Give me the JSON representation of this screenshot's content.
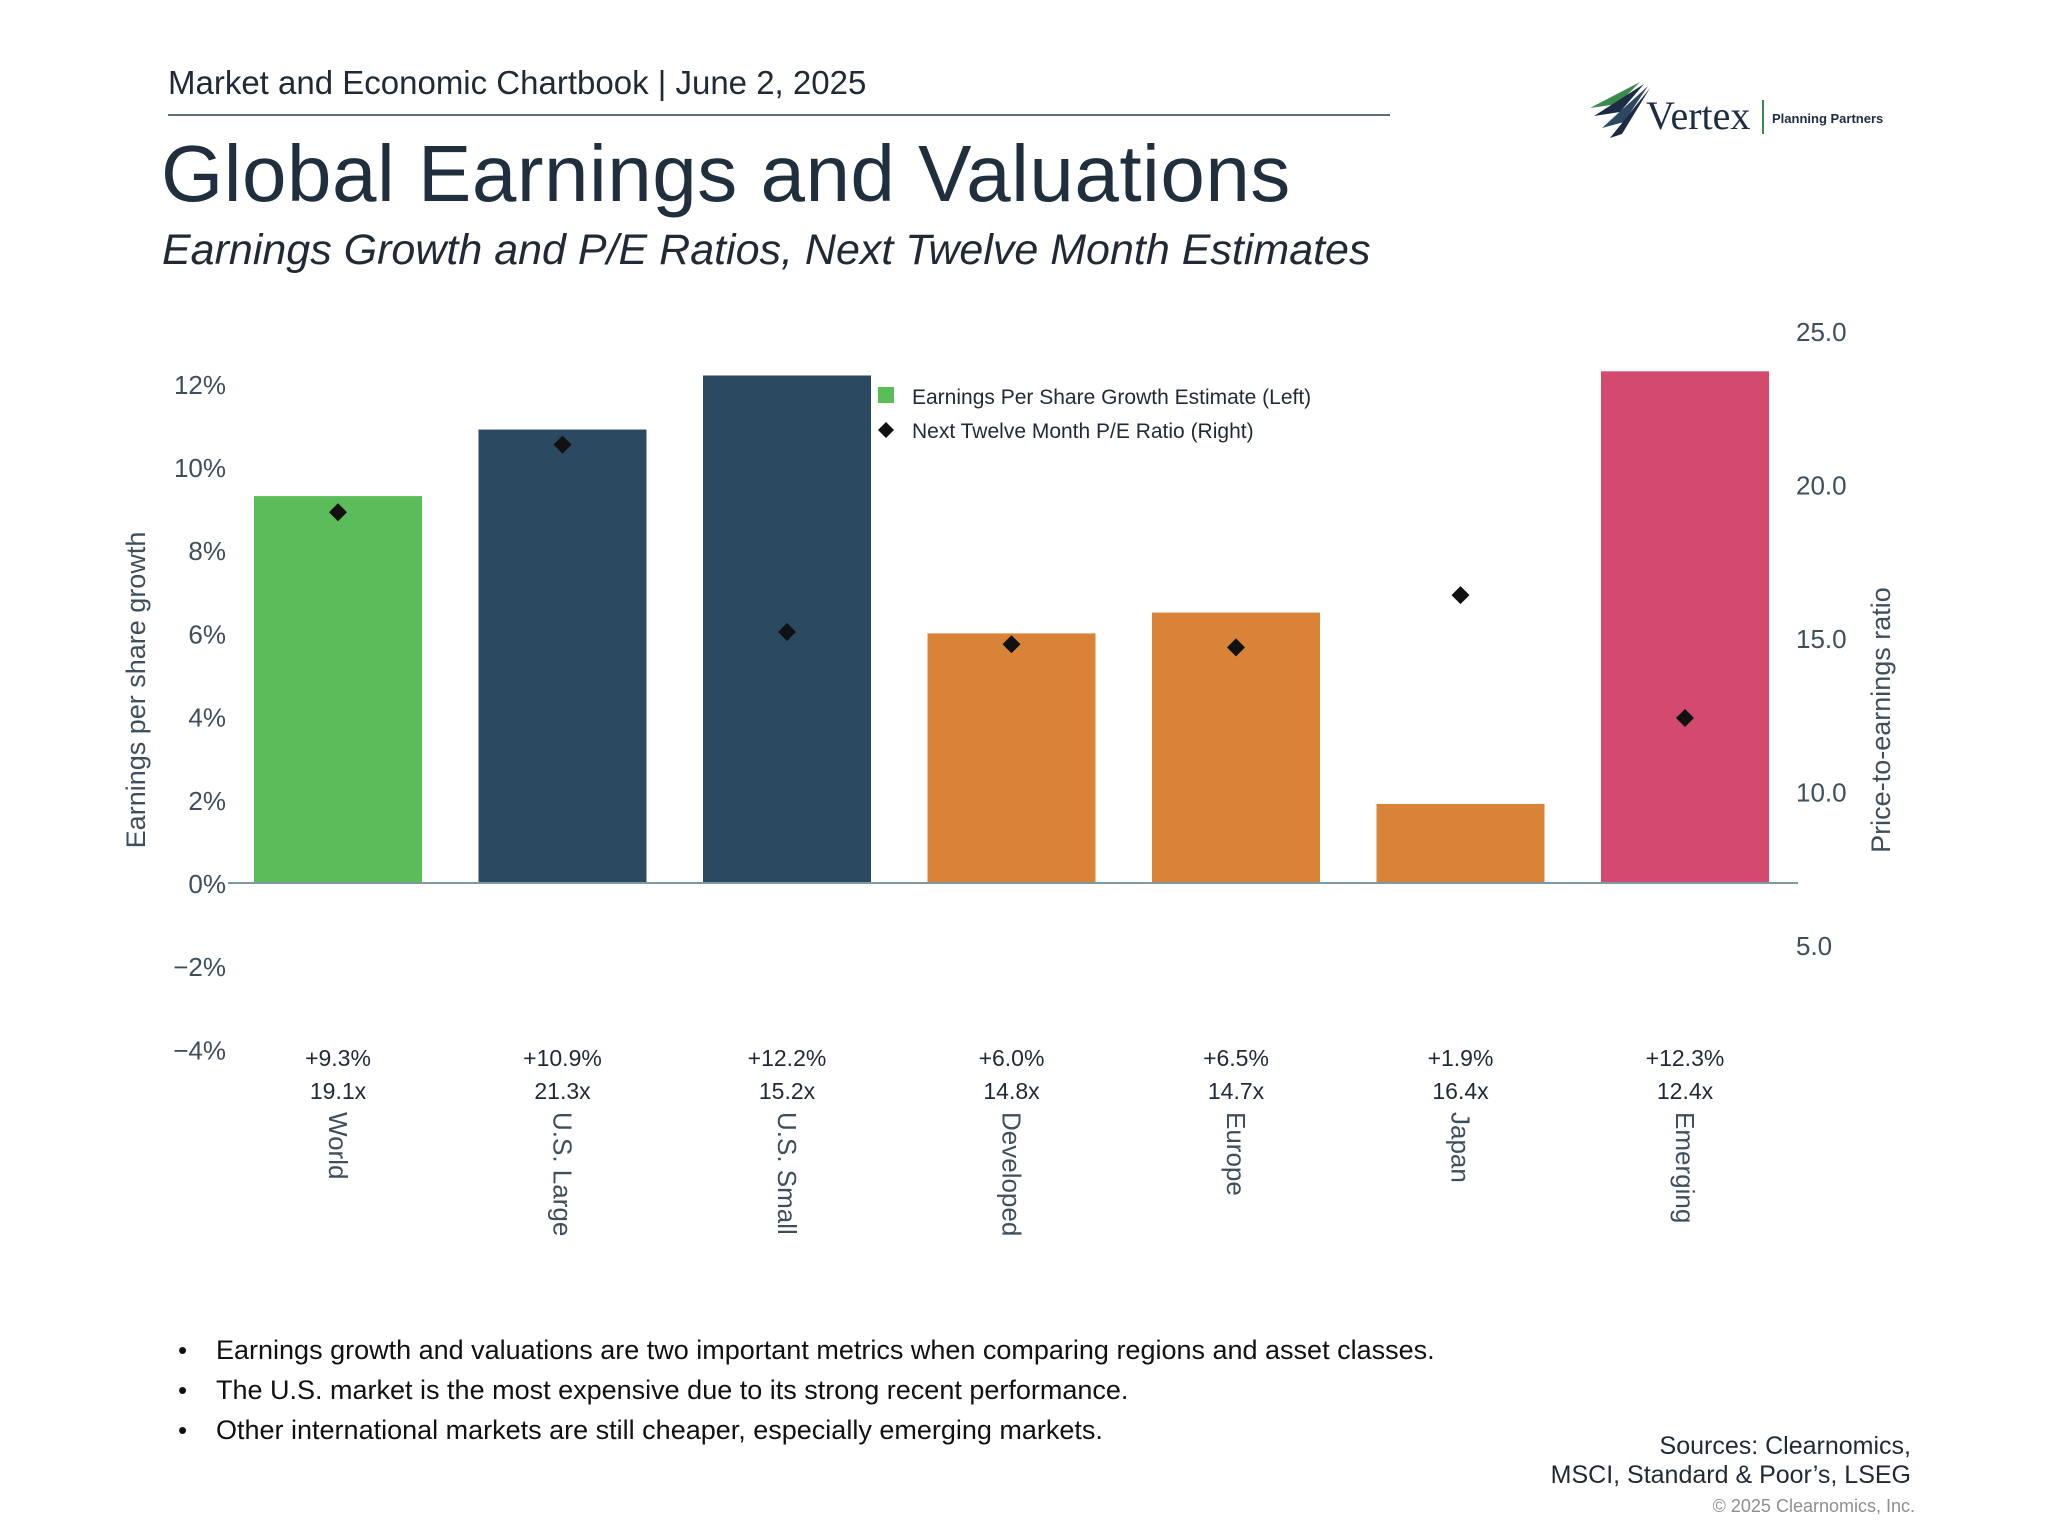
{
  "header": {
    "text": "Market and Economic Chartbook | June 2, 2025"
  },
  "logo": {
    "name": "Vertex",
    "tagline": "Planning Partners"
  },
  "title": "Global Earnings and Valuations",
  "subtitle": "Earnings Growth and P/E Ratios, Next Twelve Month Estimates",
  "colors": {
    "world": "#5bbd5a",
    "us": "#2b4961",
    "intl": "#d88337",
    "emerging": "#d34a6e",
    "axis_text": "#3d4f5c",
    "axis_line": "#7c9aa0"
  },
  "chart_data": {
    "type": "bar",
    "categories": [
      "World",
      "U.S. Large",
      "U.S. Small",
      "Developed",
      "Europe",
      "Japan",
      "Emerging"
    ],
    "series": [
      {
        "name": "Earnings Per Share Growth Estimate (Left)",
        "axis": "left",
        "kind": "bar",
        "values": [
          9.3,
          10.9,
          12.2,
          6.0,
          6.5,
          1.9,
          12.3
        ],
        "colors": [
          "#5bbd5a",
          "#2b4961",
          "#2b4961",
          "#d88337",
          "#d88337",
          "#d88337",
          "#d34a6e"
        ]
      },
      {
        "name": "Next Twelve Month P/E Ratio (Right)",
        "axis": "right",
        "kind": "scatter",
        "marker": "diamond",
        "values": [
          19.1,
          21.3,
          15.2,
          14.8,
          14.7,
          16.4,
          12.4
        ]
      }
    ],
    "value_labels": [
      "+9.3%",
      "+10.9%",
      "+12.2%",
      "+6.0%",
      "+6.5%",
      "+1.9%",
      "+12.3%"
    ],
    "pe_labels": [
      "19.1x",
      "21.3x",
      "15.2x",
      "14.8x",
      "14.7x",
      "16.4x",
      "12.4x"
    ],
    "left_axis": {
      "label": "Earnings per share growth",
      "range": [
        -4,
        12.6
      ],
      "ticks": [
        12,
        10,
        8,
        6,
        4,
        2,
        0,
        -2,
        -4
      ],
      "tick_labels": [
        "12%",
        "10%",
        "8%",
        "6%",
        "4%",
        "2%",
        "0%",
        "−2%",
        "−4%"
      ]
    },
    "right_axis": {
      "label": "Price-to-earnings ratio",
      "range": [
        3.9,
        25.0
      ],
      "ticks": [
        25,
        20,
        15,
        10,
        5
      ],
      "tick_labels": [
        "25.0",
        "20.0",
        "15.0",
        "10.0",
        "5.0"
      ]
    },
    "legend": {
      "placement": "top-center",
      "items": [
        {
          "label": "Earnings Per Share Growth Estimate (Left)",
          "marker": "square",
          "color": "#5bbd5a"
        },
        {
          "label": "Next Twelve Month P/E Ratio (Right)",
          "marker": "diamond",
          "color": "#111111"
        }
      ]
    },
    "grid": false
  },
  "bullets": [
    "Earnings growth and valuations are two important metrics when comparing regions and asset classes.",
    "The U.S. market is the most expensive due to its strong recent performance.",
    "Other international markets are still cheaper, especially emerging markets."
  ],
  "sources": {
    "line1": "Sources: Clearnomics,",
    "line2": "MSCI, Standard & Poor’s, LSEG"
  },
  "copyright": "© 2025 Clearnomics, Inc."
}
